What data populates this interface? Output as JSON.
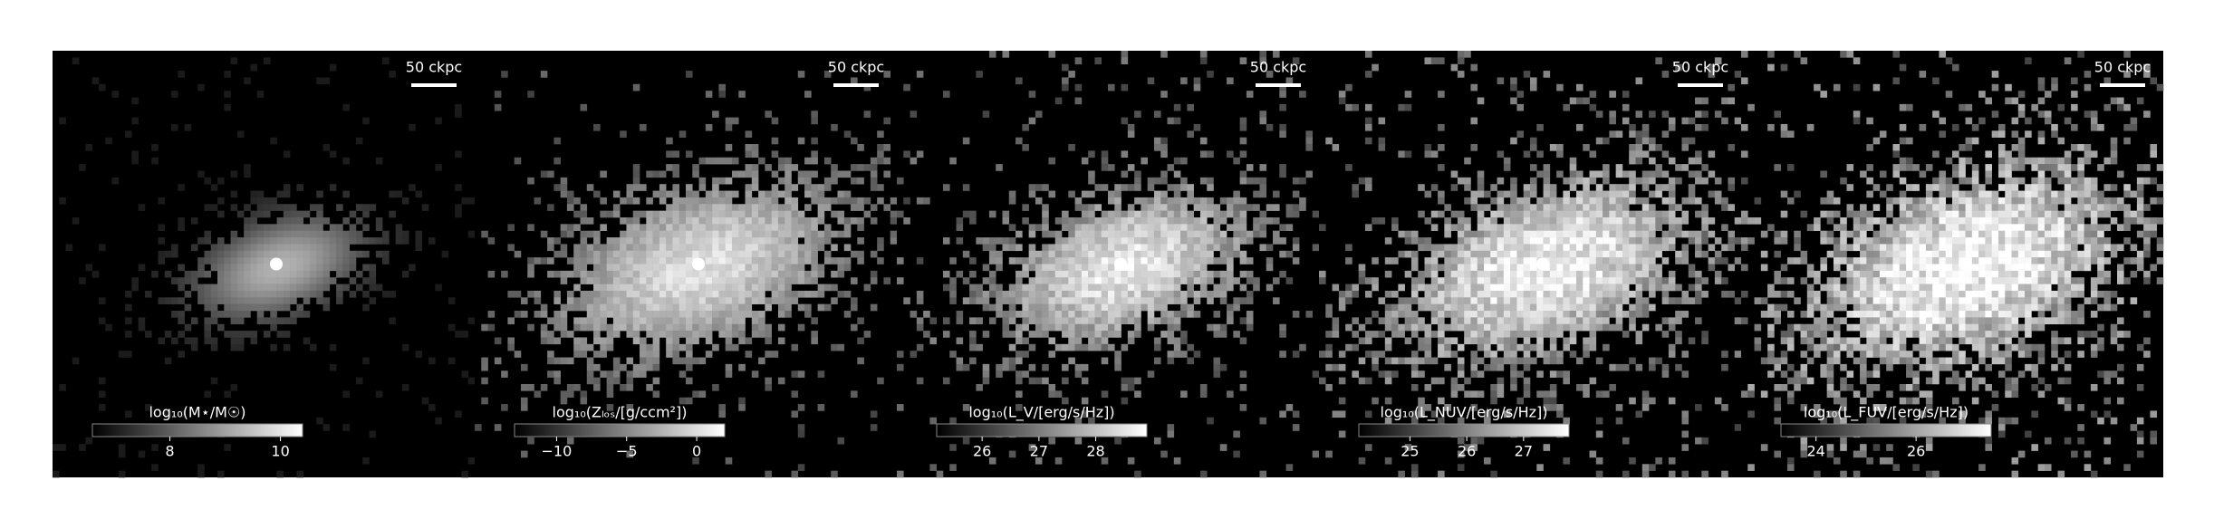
{
  "chart_data": [
    {
      "type": "image",
      "scale_label": "50 ckpc",
      "colorbar_label": "log₁₀(M⋆/M☉)",
      "clim": [
        6.6,
        10.4
      ],
      "cticks": [
        8,
        10
      ]
    },
    {
      "type": "image",
      "scale_label": "50 ckpc",
      "colorbar_label": "log₁₀(Zₗₒₛ/[g/ccm²])",
      "clim": [
        -13,
        2
      ],
      "cticks": [
        {
          "value": -10,
          "label": "−10"
        },
        {
          "value": -5,
          "label": "−5"
        },
        0
      ]
    },
    {
      "type": "image",
      "scale_label": "50 ckpc",
      "colorbar_label": "log₁₀(L_V/[erg/s/Hz])",
      "clim": [
        25.2,
        28.9
      ],
      "cticks": [
        26,
        27,
        28
      ]
    },
    {
      "type": "image",
      "scale_label": "50 ckpc",
      "colorbar_label": "log₁₀(L_NUV/[erg/s/Hz])",
      "clim": [
        24.1,
        27.8
      ],
      "cticks": [
        25,
        26,
        27
      ]
    },
    {
      "type": "image",
      "scale_label": "50 ckpc",
      "colorbar_label": "log₁₀(L_FUV/[erg/s/Hz])",
      "clim": [
        23.3,
        27.5
      ],
      "cticks": [
        24,
        26
      ]
    }
  ]
}
